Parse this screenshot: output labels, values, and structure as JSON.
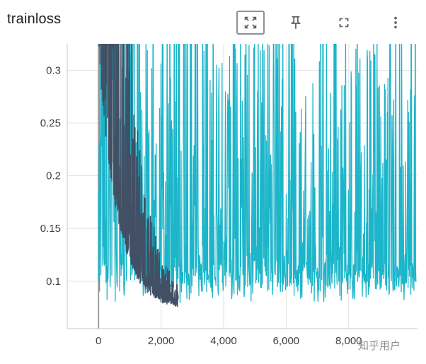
{
  "header": {
    "title": "trainloss"
  },
  "toolbar": {
    "buttons": [
      {
        "name": "fit-domain-to-data",
        "active": true
      },
      {
        "name": "pin-card",
        "active": false
      },
      {
        "name": "fullscreen",
        "active": false
      },
      {
        "name": "more-options",
        "active": false
      }
    ]
  },
  "watermark": {
    "text": "知乎用户"
  },
  "colors": {
    "series_dark": "#425066",
    "series_cyan": "#1cb5c9",
    "grid": "#e3e3e3",
    "zero_line": "#9e9e9e",
    "axis_border": "#c9c9c9",
    "tick_label": "#3c4043",
    "icon": "#5f6368"
  },
  "chart_data": {
    "type": "line",
    "title": "trainloss",
    "xlabel": "",
    "ylabel": "",
    "grid": true,
    "legend": "none",
    "x_range": [
      -1000,
      10200
    ],
    "y_range": [
      0.055,
      0.325
    ],
    "x_ticks": [
      {
        "v": 0,
        "label": "0"
      },
      {
        "v": 2000,
        "label": "2,000"
      },
      {
        "v": 4000,
        "label": "4,000"
      },
      {
        "v": 6000,
        "label": "6,000"
      },
      {
        "v": 8000,
        "label": "8,000"
      }
    ],
    "y_ticks": [
      {
        "v": 0.3,
        "label": "0.3"
      },
      {
        "v": 0.25,
        "label": "0.25"
      },
      {
        "v": 0.2,
        "label": "0.2"
      },
      {
        "v": 0.15,
        "label": "0.15"
      },
      {
        "v": 0.1,
        "label": "0.1"
      }
    ],
    "series": [
      {
        "name": "run-cyan",
        "color": "#1cb5c9",
        "stroke_width": 1.3,
        "description": "Very noisy loss curve spanning full range; near-solid band 0.08 to above 0.32 before step 1500, then baseline ~0.08-0.11 with frequent spikes up to and beyond 0.32 through step ~10000",
        "synthesis": {
          "kind": "spiky",
          "seed": 1337,
          "x_start": 0,
          "x_end": 10150,
          "n": 930,
          "base": 0.078,
          "base_noise": 0.03,
          "early_until": 1400,
          "p_early": 0.85,
          "p_late": 0.52,
          "spike_pow": 1.4,
          "spike_amp": 0.36,
          "early_mult": 1.15,
          "late_m0": 0.55,
          "late_m1": 0.6,
          "small": 0.02
        }
      },
      {
        "name": "run-dark",
        "color": "#425066",
        "stroke_width": 1.5,
        "description": "Dark slate loss curve from step 0 to ~2500; starts clipped above 0.32, decays rapidly and settles into a tight band around 0.072-0.09 by step 2000",
        "synthesis": {
          "kind": "decay",
          "seed": 42,
          "x_start": 0,
          "x_end": 2550,
          "n": 430,
          "c": 0.071,
          "A": 0.7,
          "tau": 600,
          "m0": 0.35,
          "m1": 1.85,
          "pow": 3,
          "jitter": 0.005
        }
      }
    ]
  }
}
